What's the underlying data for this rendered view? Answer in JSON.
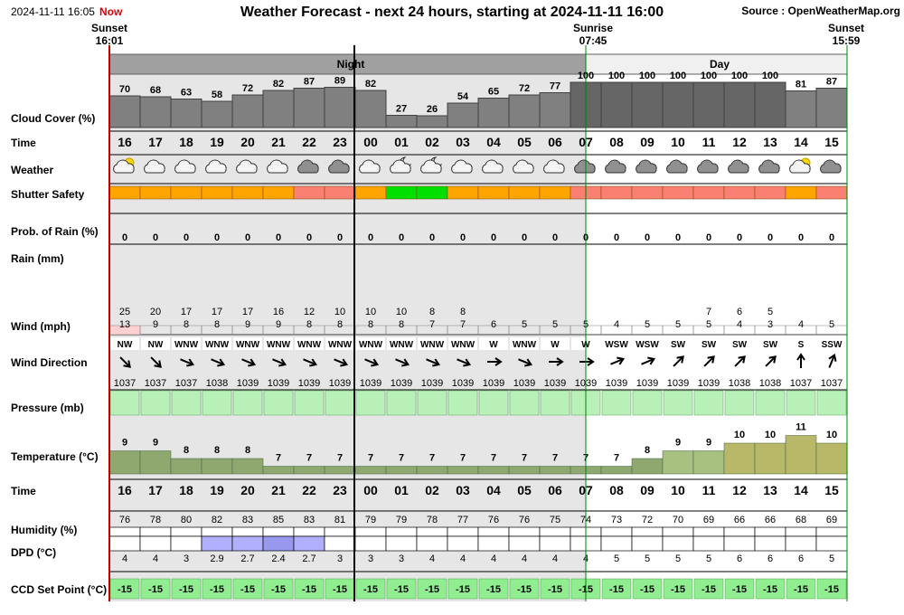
{
  "header": {
    "datetime": "2024-11-11 16:05",
    "now": "Now",
    "title": "Weather Forecast - next 24 hours, starting at 2024-11-11 16:00",
    "source": "Source : OpenWeatherMap.org",
    "sunset1_label": "Sunset",
    "sunset1_time": "16:01",
    "sunrise_label": "Sunrise",
    "sunrise_time": "07:45",
    "sunset2_label": "Sunset",
    "sunset2_time": "15:59",
    "night_label": "Night",
    "day_label": "Day"
  },
  "row_labels": {
    "cloud": "Cloud Cover (%)",
    "time": "Time",
    "weather": "Weather",
    "shutter": "Shutter Safety",
    "rain_prob": "Prob. of Rain (%)",
    "rain": "Rain (mm)",
    "wind": "Wind (mph)",
    "wind_dir": "Wind Direction",
    "pressure": "Pressure (mb)",
    "temp": "Temperature (°C)",
    "time2": "Time",
    "humidity": "Humidity (%)",
    "dpd": "DPD (°C)",
    "ccd": "CCD Set Point (°C)"
  },
  "colors": {
    "night_bg": "#e6e6e6",
    "cloud_bar": "#808080",
    "cloud_bar_dark": "#666666",
    "shutter_orange": "#ffa500",
    "shutter_green": "#00e000",
    "shutter_red": "#fa8072",
    "pressure_bg": "#b8f0b8",
    "ccd_bg": "#90ee90",
    "temp_cold": "#8fa870",
    "temp_warm": "#c8c878",
    "sunset_line": "#c00000",
    "sunrise_line": "#008000",
    "now_line": "#000000",
    "dpd_blue": "#b0b0ff"
  },
  "chart_data": {
    "type": "table",
    "hours": [
      "16",
      "17",
      "18",
      "19",
      "20",
      "21",
      "22",
      "23",
      "00",
      "01",
      "02",
      "03",
      "04",
      "05",
      "06",
      "07",
      "08",
      "09",
      "10",
      "11",
      "12",
      "13",
      "14",
      "15"
    ],
    "cloud_cover": [
      70,
      68,
      63,
      58,
      72,
      82,
      87,
      89,
      82,
      27,
      26,
      54,
      65,
      72,
      77,
      100,
      100,
      100,
      100,
      100,
      100,
      100,
      81,
      87
    ],
    "weather_icons": [
      "partly-cloudy-day",
      "cloudy",
      "cloudy",
      "cloudy",
      "cloudy",
      "cloudy",
      "overcast",
      "overcast",
      "cloudy",
      "partly-cloudy-night",
      "partly-cloudy-night",
      "cloudy",
      "cloudy",
      "cloudy",
      "cloudy",
      "overcast",
      "overcast",
      "overcast",
      "overcast",
      "overcast",
      "overcast",
      "overcast",
      "partly-cloudy-day",
      "overcast"
    ],
    "shutter_safety": [
      "orange",
      "orange",
      "orange",
      "orange",
      "orange",
      "orange",
      "red",
      "red",
      "orange",
      "green",
      "green",
      "orange",
      "orange",
      "orange",
      "orange",
      "red",
      "red",
      "red",
      "red",
      "red",
      "red",
      "red",
      "orange",
      "red"
    ],
    "rain_probability": [
      0,
      0,
      0,
      0,
      0,
      0,
      0,
      0,
      0,
      0,
      0,
      0,
      0,
      0,
      0,
      0,
      0,
      0,
      0,
      0,
      0,
      0,
      0,
      0
    ],
    "wind_gust": [
      25,
      20,
      17,
      17,
      17,
      16,
      12,
      10,
      10,
      10,
      8,
      8,
      null,
      null,
      null,
      null,
      null,
      null,
      null,
      7,
      6,
      5,
      null,
      null
    ],
    "wind_speed": [
      13,
      9,
      8,
      8,
      9,
      9,
      8,
      8,
      8,
      8,
      7,
      7,
      6,
      5,
      5,
      5,
      4,
      5,
      5,
      5,
      4,
      3,
      4,
      5
    ],
    "wind_direction": [
      "NW",
      "NW",
      "WNW",
      "WNW",
      "WNW",
      "WNW",
      "WNW",
      "WNW",
      "WNW",
      "WNW",
      "WNW",
      "WNW",
      "W",
      "WNW",
      "W",
      "W",
      "WSW",
      "WSW",
      "SW",
      "SW",
      "SW",
      "SW",
      "S",
      "SSW"
    ],
    "pressure": [
      1037,
      1037,
      1037,
      1038,
      1039,
      1039,
      1039,
      1039,
      1039,
      1039,
      1039,
      1039,
      1039,
      1039,
      1039,
      1039,
      1039,
      1039,
      1039,
      1039,
      1038,
      1038,
      1037,
      1037
    ],
    "temperature": [
      9,
      9,
      8,
      8,
      8,
      7,
      7,
      7,
      7,
      7,
      7,
      7,
      7,
      7,
      7,
      7,
      7,
      8,
      9,
      9,
      10,
      10,
      11,
      10
    ],
    "humidity": [
      76,
      78,
      80,
      82,
      83,
      85,
      83,
      81,
      79,
      79,
      78,
      77,
      76,
      76,
      75,
      74,
      73,
      72,
      70,
      69,
      66,
      66,
      68,
      69
    ],
    "dpd": [
      "4",
      "4",
      "3",
      "2.9",
      "2.7",
      "2.4",
      "2.7",
      "3",
      "3",
      "3",
      "4",
      "4",
      "4",
      "4",
      "4",
      "4",
      "5",
      "5",
      "5",
      "5",
      "6",
      "6",
      "6",
      "5"
    ],
    "ccd_set_point": [
      -15,
      -15,
      -15,
      -15,
      -15,
      -15,
      -15,
      -15,
      -15,
      -15,
      -15,
      -15,
      -15,
      -15,
      -15,
      -15,
      -15,
      -15,
      -15,
      -15,
      -15,
      -15,
      -15,
      -15
    ]
  }
}
